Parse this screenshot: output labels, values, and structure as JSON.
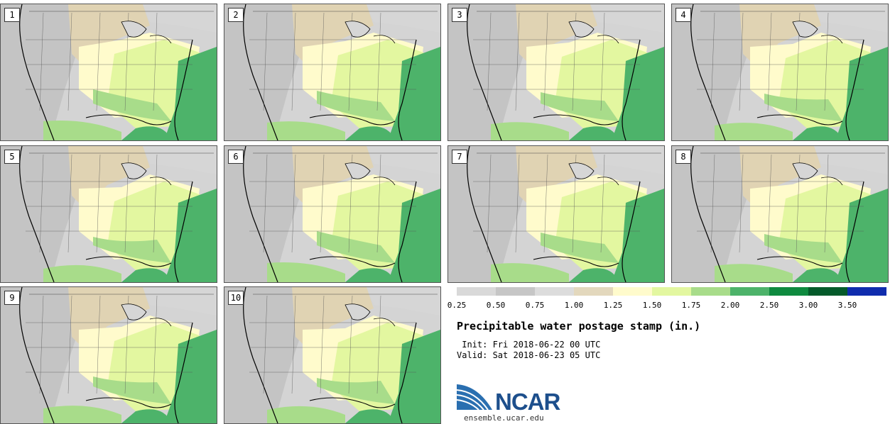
{
  "panels": [
    {
      "label": "1"
    },
    {
      "label": "2"
    },
    {
      "label": "3"
    },
    {
      "label": "4"
    },
    {
      "label": "5"
    },
    {
      "label": "6"
    },
    {
      "label": "7"
    },
    {
      "label": "8"
    },
    {
      "label": "9"
    },
    {
      "label": "10"
    }
  ],
  "colorbar": {
    "colors": [
      "#d9d9d9",
      "#c6c6c6",
      "#dcdcdc",
      "#e3d8bd",
      "#fffbcc",
      "#e3f7a0",
      "#a8dc8a",
      "#4db36a",
      "#0e8a3f",
      "#045a2a",
      "#0f2cad"
    ],
    "ticks": [
      "0.25",
      "0.50",
      "0.75",
      "1.00",
      "1.25",
      "1.50",
      "1.75",
      "2.00",
      "2.50",
      "3.00",
      "3.50"
    ]
  },
  "title": "Precipitable water postage stamp (in.)",
  "init_line": " Init: Fri 2018-06-22 00 UTC",
  "valid_line": "Valid: Sat 2018-06-23 05 UTC",
  "logo": {
    "text": "NCAR",
    "site": "ensemble.ucar.edu",
    "brand_color": "#1d4f8c"
  }
}
